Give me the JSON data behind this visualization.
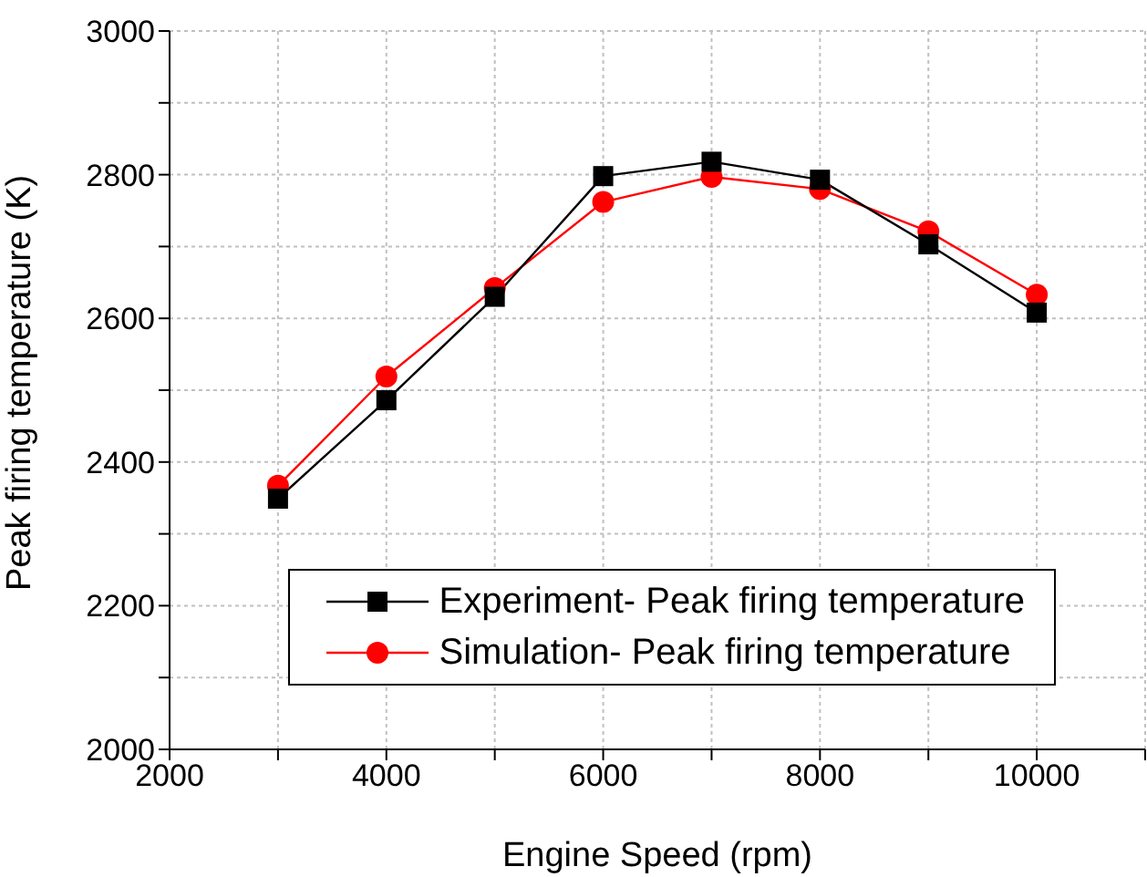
{
  "chart_data": {
    "type": "line",
    "xlabel": "Engine Speed (rpm)",
    "ylabel": "Peak firing temperature (K)",
    "x": [
      3000,
      4000,
      5000,
      6000,
      7000,
      8000,
      9000,
      10000
    ],
    "series": [
      {
        "name": "Experiment- Peak firing temperature",
        "color": "#000000",
        "marker": "square",
        "values": [
          2349,
          2486,
          2630,
          2798,
          2818,
          2793,
          2703,
          2608
        ]
      },
      {
        "name": "Simulation- Peak firing temperature",
        "color": "#ff0000",
        "marker": "circle",
        "values": [
          2367,
          2519,
          2642,
          2762,
          2797,
          2780,
          2721,
          2633
        ]
      }
    ],
    "xlim": [
      2000,
      11000
    ],
    "xticks": [
      2000,
      {
        "value": 3000,
        "label": null
      },
      4000,
      {
        "value": 5000,
        "label": null
      },
      6000,
      {
        "value": 7000,
        "label": null
      },
      8000,
      {
        "value": 9000,
        "label": null
      },
      10000,
      {
        "value": 11000,
        "label": null
      }
    ],
    "ylim": [
      2000,
      3000
    ],
    "yticks": [
      2000,
      {
        "value": 2100,
        "label": null
      },
      2200,
      {
        "value": 2300,
        "label": null
      },
      2400,
      {
        "value": 2500,
        "label": null
      },
      2600,
      {
        "value": 2700,
        "label": null
      },
      2800,
      {
        "value": 2900,
        "label": null
      },
      3000
    ],
    "grid": true,
    "legend": "bottom right",
    "line_style": "solid"
  }
}
